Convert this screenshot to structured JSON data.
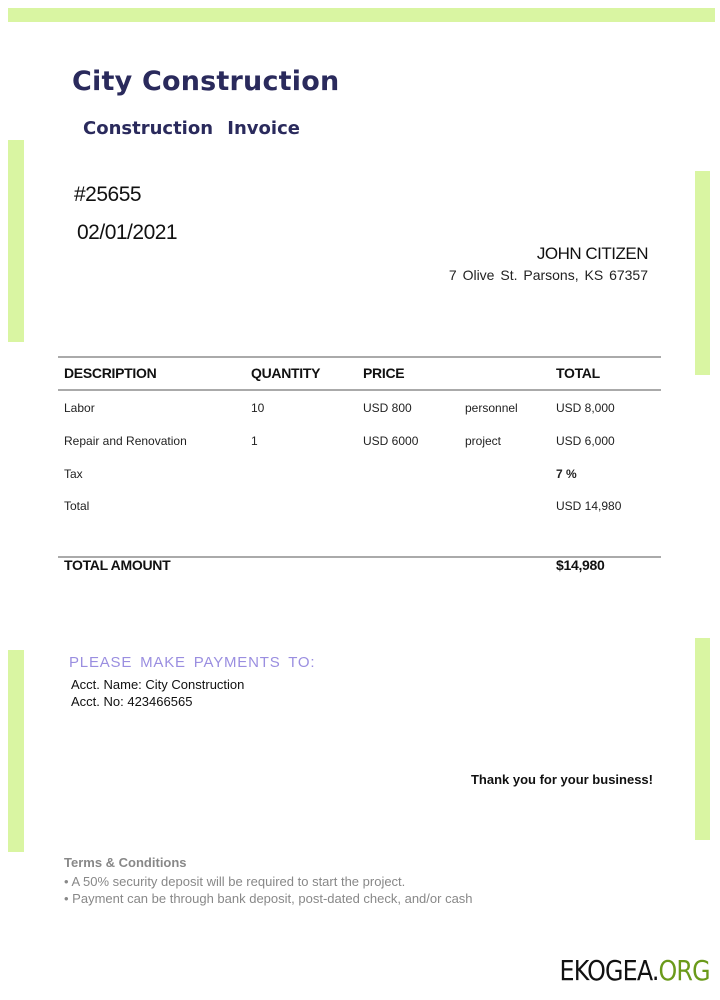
{
  "header": {
    "company": "City Construction",
    "doc_title": "Construction  Invoice"
  },
  "invoice": {
    "number": "#25655",
    "date": "02/01/2021"
  },
  "client": {
    "name": "JOHN CITIZEN",
    "address": "7 Olive St. Parsons,  KS 67357"
  },
  "table": {
    "headers": [
      "DESCRIPTION",
      "QUANTITY",
      "PRICE",
      "",
      "TOTAL"
    ],
    "rows": [
      [
        "Labor",
        "10",
        "USD 800",
        "personnel",
        "USD 8,000"
      ],
      [
        "Repair and Renovation",
        "1",
        "USD 6000",
        "project",
        "USD 6,000"
      ],
      [
        "Tax",
        "",
        "",
        "",
        "7 %"
      ],
      [
        "Total",
        "",
        "",
        "",
        "USD 14,980"
      ]
    ],
    "total_label": "TOTAL AMOUNT",
    "total_value": "$14,980"
  },
  "payment": {
    "heading": "PLEASE  MAKE  PAYMENTS  TO:",
    "acct_name": "Acct. Name: City Construction",
    "acct_no": "Acct. No: 423466565"
  },
  "thanks": "Thank you for your business!",
  "terms": {
    "heading": "Terms & Conditions",
    "items": [
      "• A 50% security deposit will be required to start the project.",
      "• Payment can be through bank deposit,  post-dated check, and/or cash"
    ]
  },
  "watermark": {
    "part1": "EKOGEA.",
    "part2": "ORG"
  },
  "colors": {
    "accent_bar": "#d9f5a2",
    "title": "#2a2a5c",
    "payment_heading": "#9a8ee0",
    "logo_green": "#6a9a1a"
  }
}
